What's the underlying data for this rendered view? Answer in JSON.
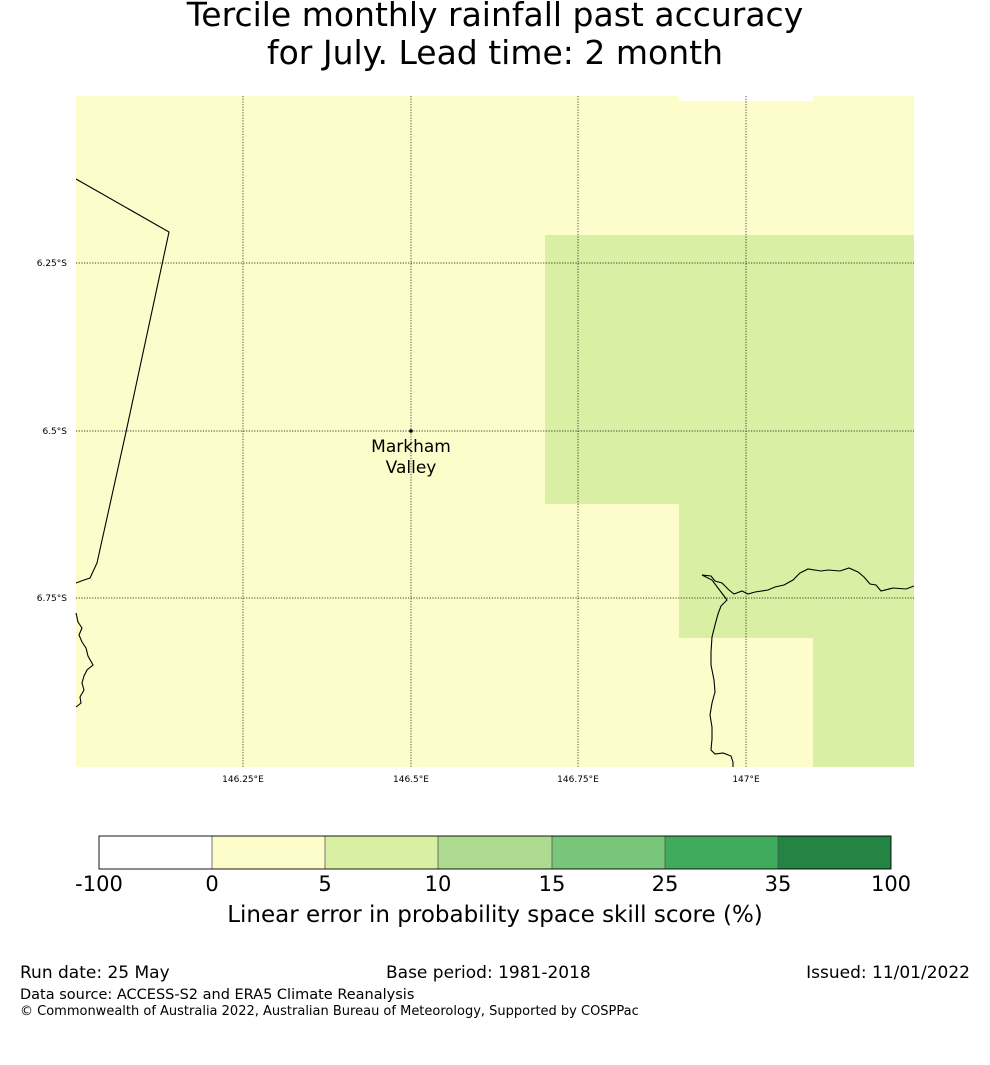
{
  "title": {
    "line1": "Tercile monthly rainfall past accuracy",
    "line2": "for July. Lead time: 2 month"
  },
  "map": {
    "background_color": "#fdfdcb",
    "longitude_labels": [
      "146.25°E",
      "146.5°E",
      "146.75°E",
      "147°E"
    ],
    "latitude_labels": [
      "6.25°S",
      "6.5°S",
      "6.75°S"
    ],
    "place": {
      "name_line1": "Markham",
      "name_line2": "Valley",
      "lon": 146.5,
      "lat": -6.5
    },
    "skill_regions": [
      {
        "category": "5-10",
        "color": "#d9efa3"
      },
      {
        "category": "-100-0",
        "color": "#ffffff"
      }
    ]
  },
  "colorbar": {
    "ticks": [
      "-100",
      "0",
      "5",
      "10",
      "15",
      "25",
      "35",
      "100"
    ],
    "colors": [
      "#ffffff",
      "#fdfdcb",
      "#d9efa3",
      "#addc90",
      "#78c679",
      "#41ab5d",
      "#238443"
    ],
    "label": "Linear error in probability space skill score (%)"
  },
  "footer": {
    "run_date": "Run date: 25 May",
    "base_period": "Base period: 1981-2018",
    "issued": "Issued: 11/01/2022",
    "data_source": "Data source: ACCESS-S2 and ERA5 Climate Reanalysis",
    "copyright": "© Commonwealth of Australia 2022, Australian Bureau of Meteorology, Supported by COSPPac"
  }
}
